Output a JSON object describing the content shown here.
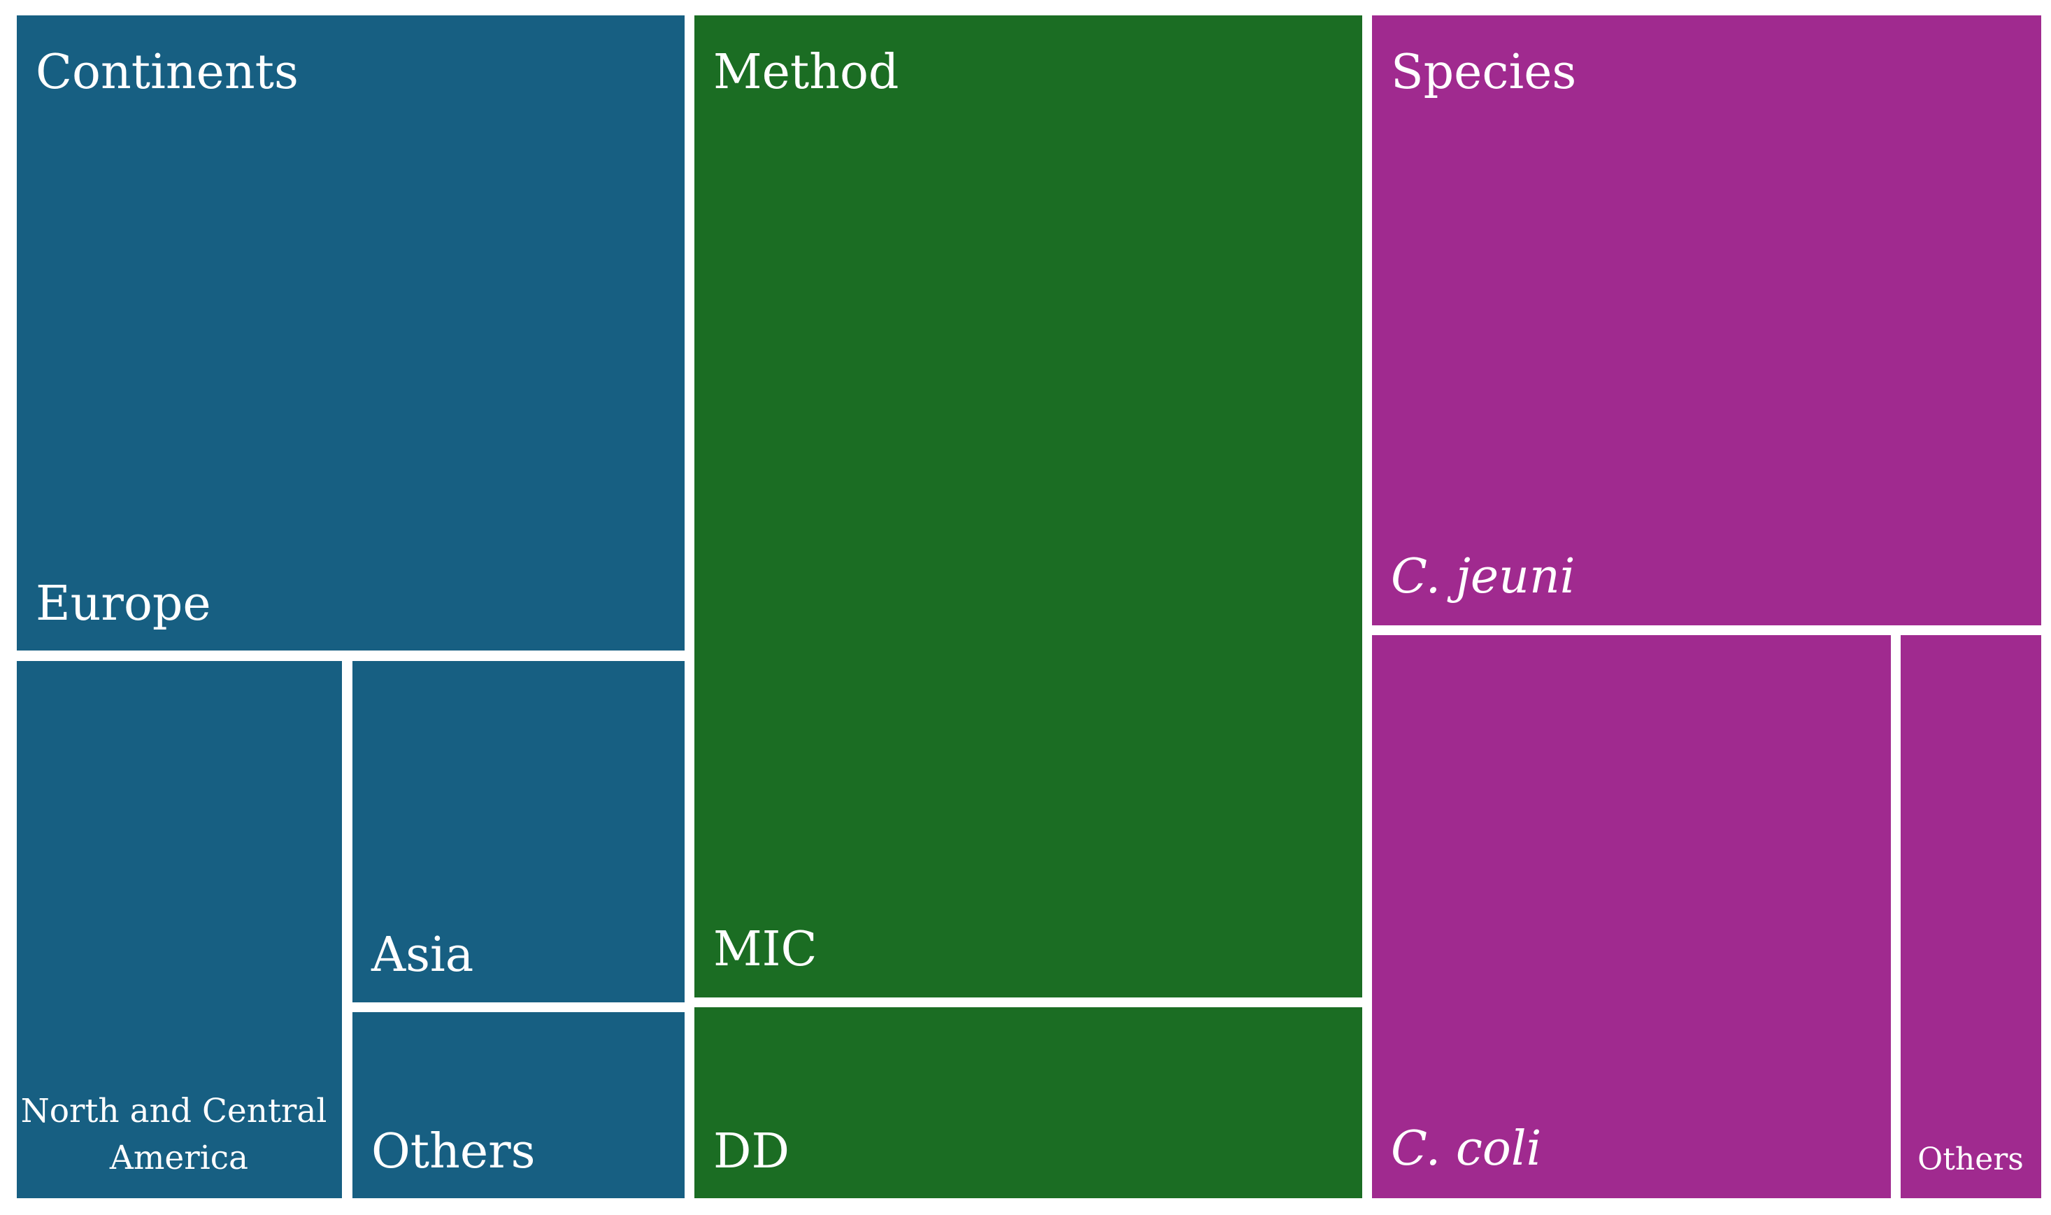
{
  "chart_data": {
    "type": "treemap",
    "title": "",
    "groups": [
      {
        "name": "Continents",
        "color": "#175f82",
        "children": [
          {
            "name": "Europe",
            "value": 57.6,
            "italic": false
          },
          {
            "name": "North and Central America",
            "value": 21.6,
            "italic": false
          },
          {
            "name": "Asia",
            "value": 13.0,
            "italic": false
          },
          {
            "name": "Others",
            "value": 7.8,
            "italic": false
          }
        ]
      },
      {
        "name": "Method",
        "color": "#1b6d23",
        "children": [
          {
            "name": "MIC",
            "value": 83.0,
            "italic": false
          },
          {
            "name": "DD",
            "value": 17.0,
            "italic": false
          }
        ]
      },
      {
        "name": "Species",
        "color": "#a02a8f",
        "children": [
          {
            "name": "C. jeuni",
            "value": 51.5,
            "italic": true
          },
          {
            "name": "C. coli",
            "value": 38.5,
            "italic": true
          },
          {
            "name": "Others",
            "value": 10.0,
            "italic": true
          }
        ]
      }
    ]
  }
}
